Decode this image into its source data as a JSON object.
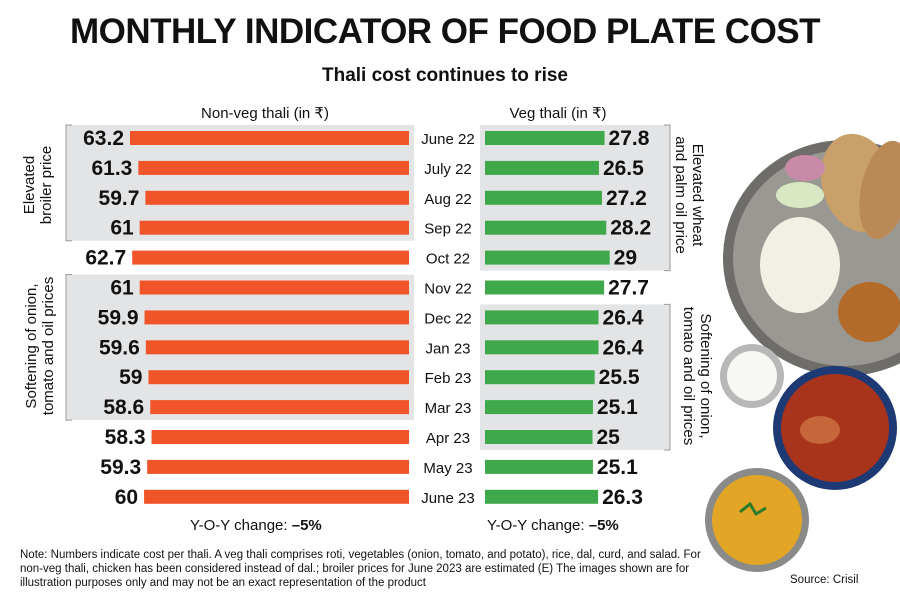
{
  "title": "MONTHLY INDICATOR OF FOOD PLATE COST",
  "subtitle": "Thali cost continues to rise",
  "note": "Note: Numbers indicate cost per thali. A veg thali comprises roti, vegetables (onion, tomato, and potato), rice, dal, curd, and salad. For non-veg thali, chicken has been considered instead of dal.; broiler prices for June 2023 are estimated (E) The images shown are for illustration purposes only and may not be an exact representation of the product",
  "source": "Source: Crisil",
  "colors": {
    "nonveg": "#f0552a",
    "veg": "#3fa84a",
    "shade": "#e3e4e6",
    "frame": "#9a9a9a"
  },
  "chart_data": {
    "type": "bar",
    "categories": [
      "June 22",
      "July 22",
      "Aug 22",
      "Sep 22",
      "Oct 22",
      "Nov 22",
      "Dec 22",
      "Jan 23",
      "Feb 23",
      "Mar 23",
      "Apr 23",
      "May 23",
      "June 23"
    ],
    "series": [
      {
        "name": "Non-veg thali (in ₹)",
        "values": [
          63.2,
          61.3,
          59.7,
          61,
          62.7,
          61,
          59.9,
          59.6,
          59,
          58.6,
          58.3,
          59.3,
          60
        ],
        "labels": [
          "63.2",
          "61.3",
          "59.7",
          "61",
          "62.7",
          "61",
          "59.9",
          "59.6",
          "59",
          "58.6",
          "58.3",
          "59.3",
          "60"
        ]
      },
      {
        "name": "Veg thali (in ₹)",
        "values": [
          27.8,
          26.5,
          27.2,
          28.2,
          29,
          27.7,
          26.4,
          26.4,
          25.5,
          25.1,
          25,
          25.1,
          26.3
        ],
        "labels": [
          "27.8",
          "26.5",
          "27.2",
          "28.2",
          "29",
          "27.7",
          "26.4",
          "26.4",
          "25.5",
          "25.1",
          "25",
          "25.1",
          "26.3"
        ]
      }
    ],
    "yoy": [
      {
        "prefix": "Y-O-Y change: ",
        "value": "–5%"
      },
      {
        "prefix": "Y-O-Y change: ",
        "value": "–5%"
      }
    ],
    "annotations": {
      "broiler": [
        "Elevated",
        "broiler price"
      ],
      "softening_nv": [
        "Softening of onion,",
        "tomato and oil prices"
      ],
      "wheat": [
        "Elevated wheat",
        "and palm oil price"
      ],
      "softening_v": [
        "Softening of onion,",
        "tomato and oil prices"
      ]
    }
  }
}
